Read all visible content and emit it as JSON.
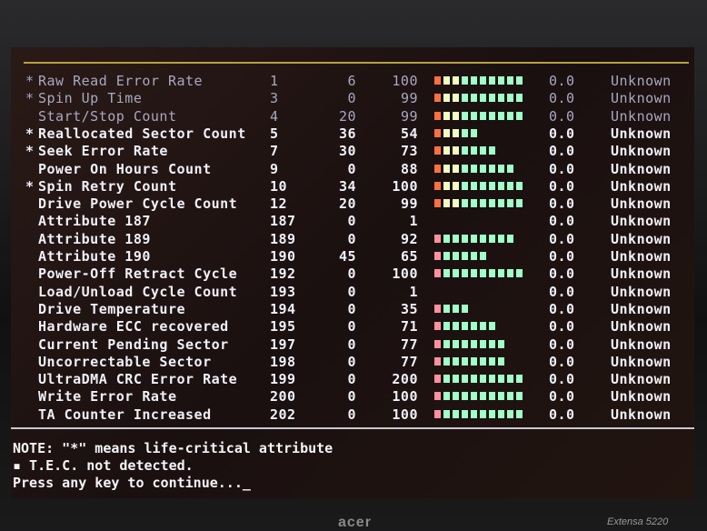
{
  "colors": {
    "bar_first": "#ff7040",
    "bar_mid": "#f0ffc0",
    "bar_green": "#a0ffc8",
    "text": "#f0f0f8"
  },
  "rows": [
    {
      "critical": true,
      "name": "Raw Read Error Rate",
      "id": "1",
      "raw": "6",
      "value": "100",
      "bar_blocks": 10,
      "threshold": "0.0",
      "status": "Unknown"
    },
    {
      "critical": true,
      "name": "Spin Up Time",
      "id": "3",
      "raw": "0",
      "value": "99",
      "bar_blocks": 10,
      "threshold": "0.0",
      "status": "Unknown"
    },
    {
      "critical": false,
      "name": "Start/Stop Count",
      "id": "4",
      "raw": "20",
      "value": "99",
      "bar_blocks": 10,
      "threshold": "0.0",
      "status": "Unknown"
    },
    {
      "critical": true,
      "name": "Reallocated Sector Count",
      "id": "5",
      "raw": "36",
      "value": "54",
      "bar_blocks": 5,
      "threshold": "0.0",
      "status": "Unknown"
    },
    {
      "critical": true,
      "name": "Seek Error Rate",
      "id": "7",
      "raw": "30",
      "value": "73",
      "bar_blocks": 7,
      "threshold": "0.0",
      "status": "Unknown"
    },
    {
      "critical": false,
      "name": "Power On Hours Count",
      "id": "9",
      "raw": "0",
      "value": "88",
      "bar_blocks": 9,
      "threshold": "0.0",
      "status": "Unknown"
    },
    {
      "critical": true,
      "name": "Spin Retry Count",
      "id": "10",
      "raw": "34",
      "value": "100",
      "bar_blocks": 10,
      "threshold": "0.0",
      "status": "Unknown"
    },
    {
      "critical": false,
      "name": "Drive Power Cycle Count",
      "id": "12",
      "raw": "20",
      "value": "99",
      "bar_blocks": 10,
      "threshold": "0.0",
      "status": "Unknown"
    },
    {
      "critical": false,
      "name": "Attribute 187",
      "id": "187",
      "raw": "0",
      "value": "1",
      "bar_blocks": 0,
      "threshold": "0.0",
      "status": "Unknown"
    },
    {
      "critical": false,
      "name": "Attribute 189",
      "id": "189",
      "raw": "0",
      "value": "92",
      "bar_blocks": 9,
      "threshold": "0.0",
      "status": "Unknown"
    },
    {
      "critical": false,
      "name": "Attribute 190",
      "id": "190",
      "raw": "45",
      "value": "65",
      "bar_blocks": 6,
      "threshold": "0.0",
      "status": "Unknown"
    },
    {
      "critical": false,
      "name": "Power-Off Retract Cycle",
      "id": "192",
      "raw": "0",
      "value": "100",
      "bar_blocks": 10,
      "threshold": "0.0",
      "status": "Unknown"
    },
    {
      "critical": false,
      "name": "Load/Unload Cycle Count",
      "id": "193",
      "raw": "0",
      "value": "1",
      "bar_blocks": 0,
      "threshold": "0.0",
      "status": "Unknown"
    },
    {
      "critical": false,
      "name": "Drive Temperature",
      "id": "194",
      "raw": "0",
      "value": "35",
      "bar_blocks": 4,
      "threshold": "0.0",
      "status": "Unknown"
    },
    {
      "critical": false,
      "name": "Hardware ECC recovered",
      "id": "195",
      "raw": "0",
      "value": "71",
      "bar_blocks": 7,
      "threshold": "0.0",
      "status": "Unknown"
    },
    {
      "critical": false,
      "name": "Current Pending Sector",
      "id": "197",
      "raw": "0",
      "value": "77",
      "bar_blocks": 8,
      "threshold": "0.0",
      "status": "Unknown"
    },
    {
      "critical": false,
      "name": "Uncorrectable Sector",
      "id": "198",
      "raw": "0",
      "value": "77",
      "bar_blocks": 8,
      "threshold": "0.0",
      "status": "Unknown"
    },
    {
      "critical": false,
      "name": "UltraDMA CRC Error Rate",
      "id": "199",
      "raw": "0",
      "value": "200",
      "bar_blocks": 10,
      "threshold": "0.0",
      "status": "Unknown"
    },
    {
      "critical": false,
      "name": "Write Error Rate",
      "id": "200",
      "raw": "0",
      "value": "100",
      "bar_blocks": 10,
      "threshold": "0.0",
      "status": "Unknown"
    },
    {
      "critical": false,
      "name": "TA Counter Increased",
      "id": "202",
      "raw": "0",
      "value": "100",
      "bar_blocks": 10,
      "threshold": "0.0",
      "status": "Unknown"
    }
  ],
  "star_glyph": "*",
  "notes": {
    "line1": "NOTE: \"*\" means life-critical attribute",
    "line2": "▪ T.E.C. not detected.",
    "line3": "Press any key to continue..._"
  },
  "bezel": {
    "brand": "acer",
    "model": "Extensa 5220"
  }
}
